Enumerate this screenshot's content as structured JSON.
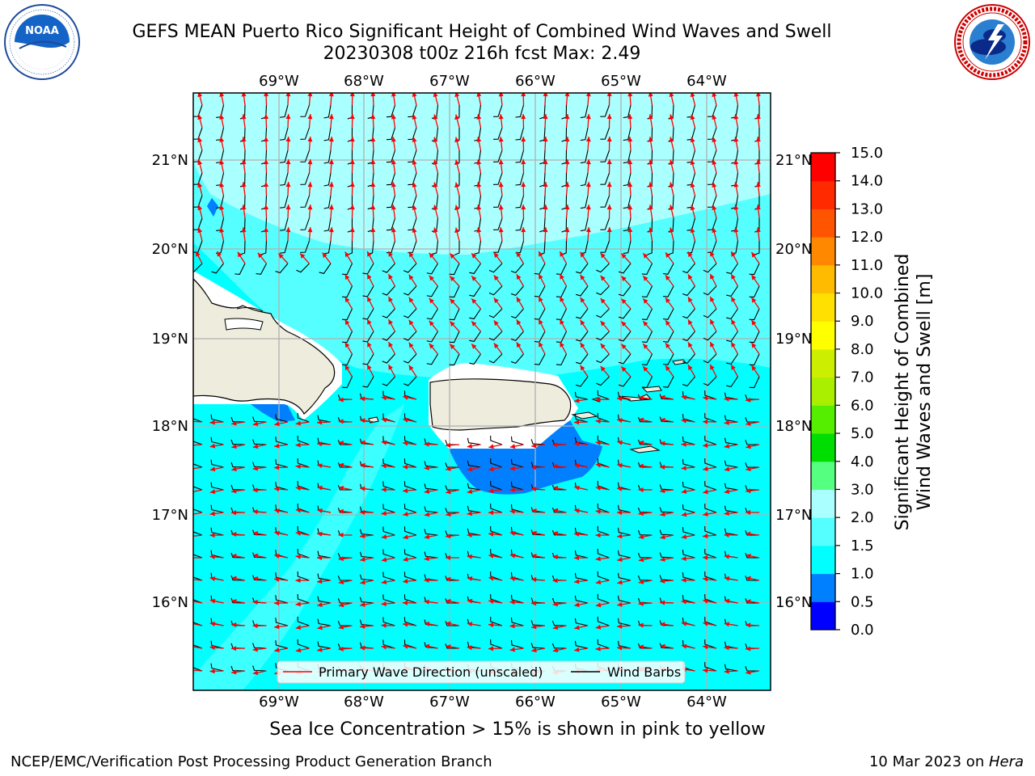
{
  "title": {
    "line1": "GEFS MEAN Puerto Rico Significant Height of Combined Wind Waves and Swell",
    "line2": "20230308 t00z 216h fcst   Max: 2.49"
  },
  "logos": {
    "left": "noaa-logo",
    "right": "nws-logo"
  },
  "map": {
    "lon_labels_top": [
      "69°W",
      "68°W",
      "67°W",
      "66°W",
      "65°W",
      "64°W"
    ],
    "lon_labels_bottom": [
      "69°W",
      "68°W",
      "67°W",
      "66°W",
      "65°W",
      "64°W"
    ],
    "lat_labels_left": [
      "21°N",
      "20°N",
      "19°N",
      "18°N",
      "17°N",
      "16°N"
    ],
    "lat_labels_right": [
      "21°N",
      "20°N",
      "19°N",
      "18°N",
      "17°N",
      "16°N"
    ],
    "extent": {
      "lon_min": -70.0,
      "lon_max": -63.26,
      "lat_min": 15.0,
      "lat_max": 21.75
    },
    "land_color": "#eeecdd",
    "ocean_base_color": "#00ffff",
    "wave_arrow_color": "#ff0000",
    "wind_barb_color": "#000000"
  },
  "legend": {
    "wave_direction": "Primary Wave Direction (unscaled)",
    "wind_barbs": "Wind Barbs"
  },
  "colorbar": {
    "title_line1": "Significant Height of Combined",
    "title_line2": "Wind Waves and Swell [m]",
    "ticks": [
      "0.0",
      "0.5",
      "1.0",
      "1.5",
      "2.0",
      "3.0",
      "4.0",
      "5.0",
      "6.0",
      "7.0",
      "8.0",
      "9.0",
      "10.0",
      "11.0",
      "12.0",
      "13.0",
      "14.0",
      "15.0"
    ],
    "colors": [
      "#0000ff",
      "#0080ff",
      "#00ffff",
      "#55ffff",
      "#aaffff",
      "#55ff80",
      "#00dd00",
      "#55ee00",
      "#aaee00",
      "#ccee00",
      "#ffff00",
      "#ffe000",
      "#ffbb00",
      "#ff8800",
      "#ff5500",
      "#ff2a00",
      "#ff0000"
    ]
  },
  "sea_ice_note": "Sea Ice Concentration > 15% is shown in pink to yellow",
  "footer": {
    "left": "NCEP/EMC/Verification Post Processing Product Generation Branch",
    "date": "10 Mar 2023 on ",
    "machine": "Hera"
  }
}
